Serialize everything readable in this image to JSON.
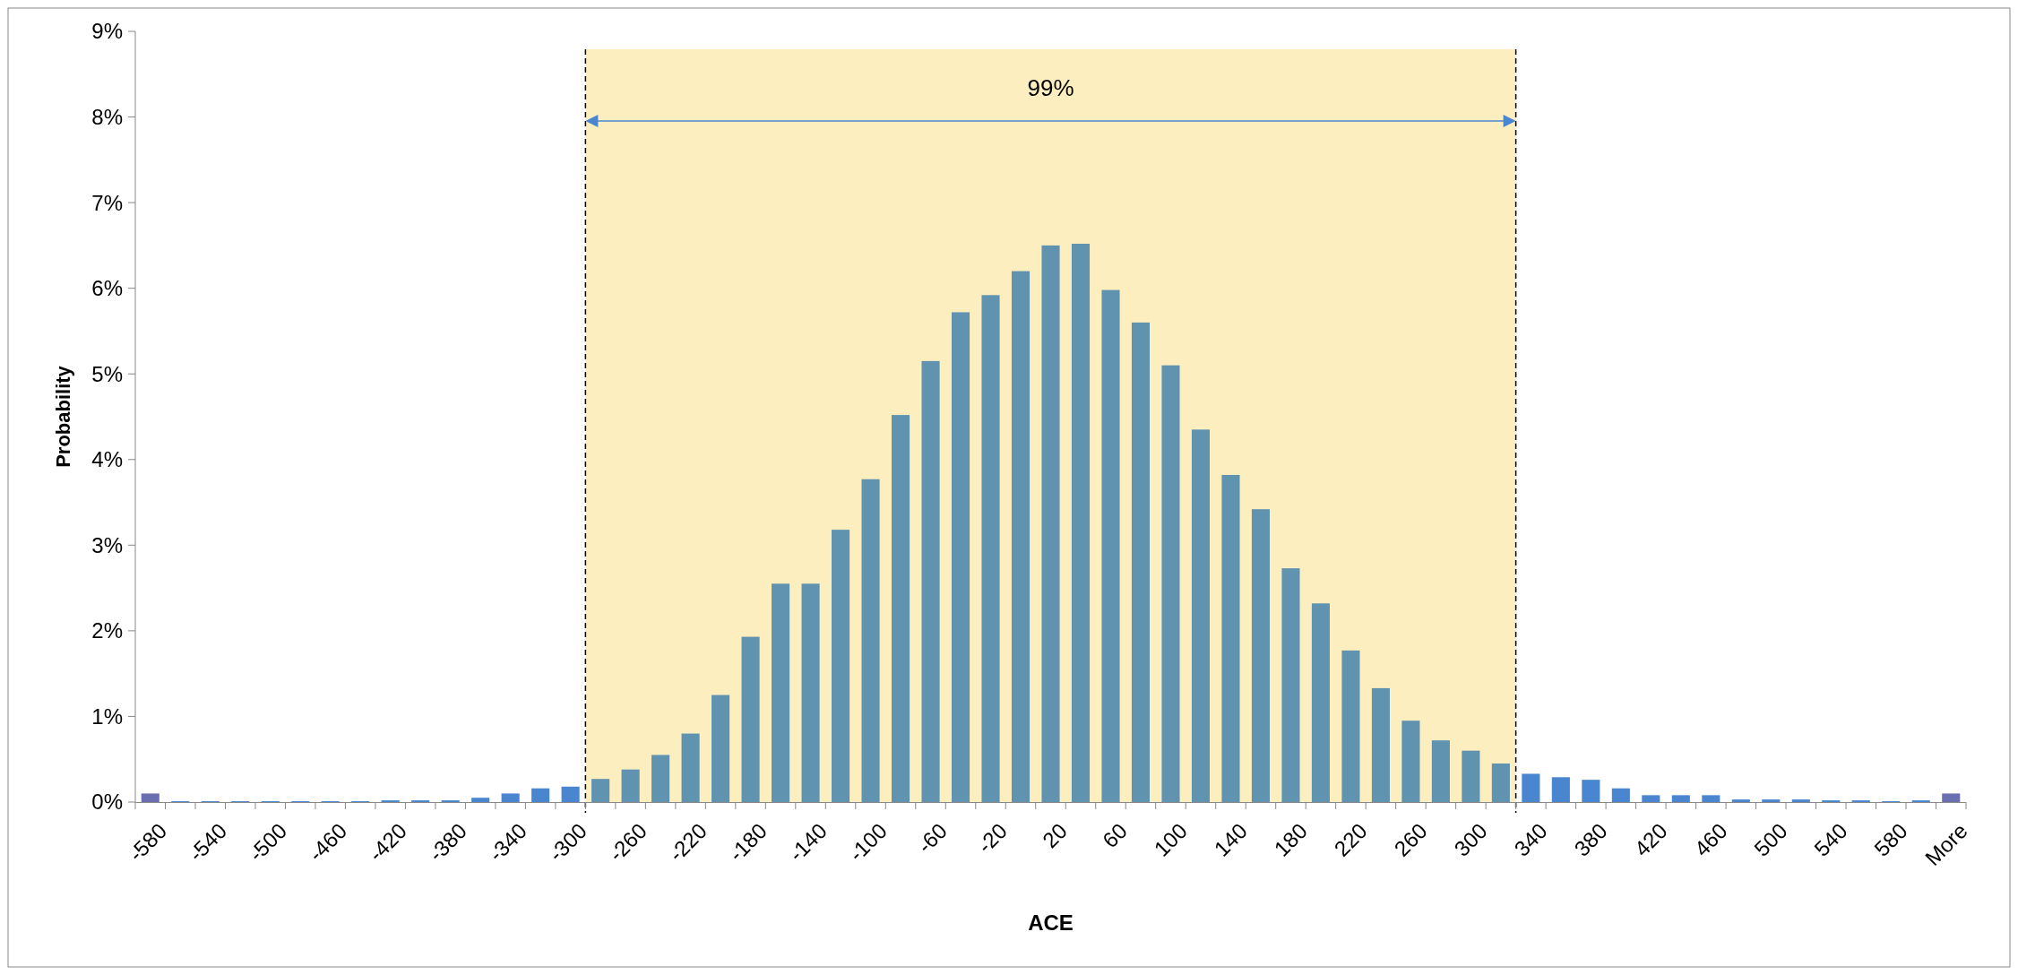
{
  "chart_data": {
    "type": "bar",
    "xlabel": "ACE",
    "ylabel": "Probability",
    "categories": [
      "-580",
      null,
      "-540",
      null,
      "-500",
      null,
      "-460",
      null,
      "-420",
      null,
      "-380",
      null,
      "-340",
      null,
      "-300",
      null,
      "-260",
      null,
      "-220",
      null,
      "-180",
      null,
      "-140",
      null,
      "-100",
      null,
      "-60",
      null,
      "-20",
      null,
      "20",
      null,
      "60",
      null,
      "100",
      null,
      "140",
      null,
      "180",
      null,
      "220",
      null,
      "260",
      null,
      "300",
      null,
      "340",
      null,
      "380",
      null,
      "420",
      null,
      "460",
      null,
      "500",
      null,
      "540",
      null,
      "580",
      null,
      "More"
    ],
    "values": [
      0.1,
      0.01,
      0.01,
      0.01,
      0.01,
      0.01,
      0.01,
      0.01,
      0.02,
      0.02,
      0.02,
      0.05,
      0.1,
      0.16,
      0.18,
      0.27,
      0.38,
      0.55,
      0.8,
      1.25,
      1.93,
      2.55,
      2.55,
      3.18,
      3.77,
      4.52,
      5.15,
      5.72,
      5.92,
      6.2,
      6.5,
      6.52,
      5.98,
      5.6,
      5.1,
      4.35,
      3.82,
      3.42,
      2.73,
      2.32,
      1.77,
      1.33,
      0.95,
      0.72,
      0.6,
      0.45,
      0.33,
      0.29,
      0.26,
      0.16,
      0.08,
      0.08,
      0.08,
      0.03,
      0.03,
      0.03,
      0.02,
      0.02,
      0.01,
      0.02,
      0.1
    ],
    "colors": [
      "#6a6fb0",
      "#4a86d0",
      "#4a86d0",
      "#4a86d0",
      "#4a86d0",
      "#4a86d0",
      "#4a86d0",
      "#4a86d0",
      "#4a86d0",
      "#4a86d0",
      "#4a86d0",
      "#4a86d0",
      "#4a86d0",
      "#4a86d0",
      "#4a86d0",
      "#5f93b0",
      "#5f93b0",
      "#5f93b0",
      "#5f93b0",
      "#5f93b0",
      "#5f93b0",
      "#5f93b0",
      "#5f93b0",
      "#5f93b0",
      "#5f93b0",
      "#5f93b0",
      "#5f93b0",
      "#5f93b0",
      "#5f93b0",
      "#5f93b0",
      "#5f93b0",
      "#5f93b0",
      "#5f93b0",
      "#5f93b0",
      "#5f93b0",
      "#5f93b0",
      "#5f93b0",
      "#5f93b0",
      "#5f93b0",
      "#5f93b0",
      "#5f93b0",
      "#5f93b0",
      "#5f93b0",
      "#5f93b0",
      "#5f93b0",
      "#5f93b0",
      "#4a86d0",
      "#4a86d0",
      "#4a86d0",
      "#4a86d0",
      "#4a86d0",
      "#4a86d0",
      "#4a86d0",
      "#4a86d0",
      "#4a86d0",
      "#4a86d0",
      "#4a86d0",
      "#4a86d0",
      "#4a86d0",
      "#4a86d0",
      "#6a6fb0"
    ],
    "ylim": [
      0,
      9
    ],
    "yticks": [
      {
        "value": 0,
        "label": "0%"
      },
      {
        "value": 1,
        "label": "1%"
      },
      {
        "value": 2,
        "label": "2%"
      },
      {
        "value": 3,
        "label": "3%"
      },
      {
        "value": 4,
        "label": "4%"
      },
      {
        "value": 5,
        "label": "5%"
      },
      {
        "value": 6,
        "label": "6%"
      },
      {
        "value": 7,
        "label": "7%"
      },
      {
        "value": 8,
        "label": "8%"
      },
      {
        "value": 9,
        "label": "9%"
      }
    ],
    "bands": [
      {
        "axis": "x",
        "from": "-300",
        "to": "340",
        "label": "99%",
        "color": "#fdeec0"
      }
    ]
  }
}
